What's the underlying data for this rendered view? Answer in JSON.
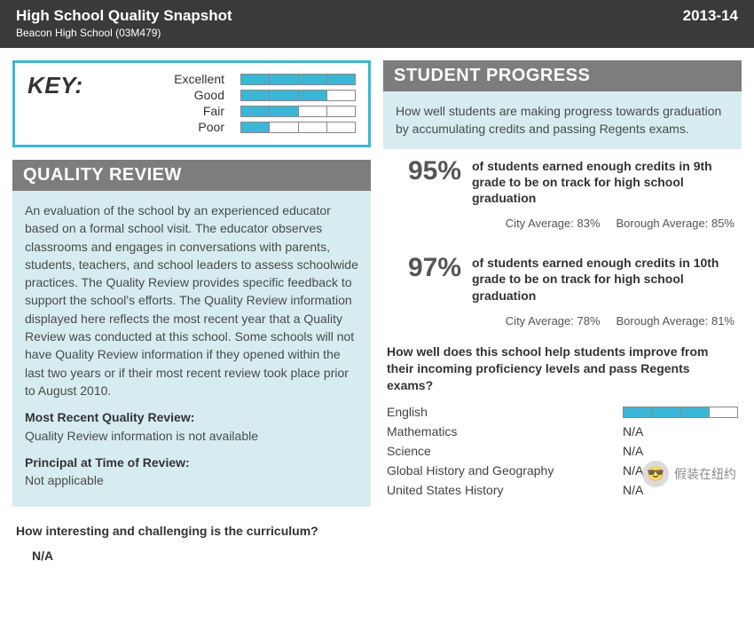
{
  "header": {
    "title": "High School Quality Snapshot",
    "subtitle": "Beacon High School (03M479)",
    "year": "2013-14",
    "bg_color": "#3a3a3a",
    "text_color": "#ffffff"
  },
  "colors": {
    "accent": "#3bb6d5",
    "panel_bg": "#d6ecf1",
    "section_header_bg": "#7d7d7d"
  },
  "key": {
    "title": "KEY:",
    "levels": [
      {
        "label": "Excellent",
        "filled": 4,
        "total": 4
      },
      {
        "label": "Good",
        "filled": 3,
        "total": 4
      },
      {
        "label": "Fair",
        "filled": 2,
        "total": 4
      },
      {
        "label": "Poor",
        "filled": 1,
        "total": 4
      }
    ]
  },
  "quality_review": {
    "heading": "QUALITY REVIEW",
    "description": "An evaluation of the school by an experienced educator based on a formal school visit. The educator observes classrooms and engages in conversations with parents, students, teachers, and school leaders to assess schoolwide practices. The Quality Review provides specific feedback to support the school's efforts. The Quality Review information displayed here reflects the most recent year that a Quality Review was conducted at this school. Some schools will not have Quality Review information if they opened within the last two years or if their most recent review took place prior to August 2010.",
    "recent_label": "Most Recent Quality Review:",
    "recent_value": "Quality Review information is not available",
    "principal_label": "Principal at Time of Review:",
    "principal_value": "Not applicable",
    "question": "How interesting and challenging is the curriculum?",
    "question_value": "N/A"
  },
  "student_progress": {
    "heading": "STUDENT PROGRESS",
    "description": "How well students are making progress towards graduation by accumulating credits and passing Regents exams.",
    "stats": [
      {
        "pct": "95%",
        "desc": "of students earned enough credits in 9th grade to be on track for high school graduation",
        "city_avg": "City Average: 83%",
        "borough_avg": "Borough Average: 85%"
      },
      {
        "pct": "97%",
        "desc": "of students earned enough credits in 10th grade to be on track for high school graduation",
        "city_avg": "City Average: 78%",
        "borough_avg": "Borough Average: 81%"
      }
    ],
    "subjects_question": "How well does this school help students improve from their incoming proficiency levels and pass Regents exams?",
    "subjects": [
      {
        "name": "English",
        "rating_filled": 3,
        "rating_total": 4,
        "value": null
      },
      {
        "name": "Mathematics",
        "rating_filled": null,
        "rating_total": null,
        "value": "N/A"
      },
      {
        "name": "Science",
        "rating_filled": null,
        "rating_total": null,
        "value": "N/A"
      },
      {
        "name": "Global History and Geography",
        "rating_filled": null,
        "rating_total": null,
        "value": "N/A"
      },
      {
        "name": "United States History",
        "rating_filled": null,
        "rating_total": null,
        "value": "N/A"
      }
    ]
  },
  "watermark": {
    "icon": "😎",
    "text": "假装在纽约"
  }
}
